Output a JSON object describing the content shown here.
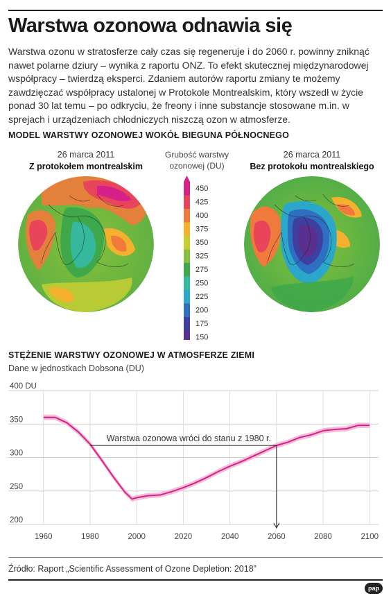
{
  "title": "Warstwa ozonowa odnawia się",
  "intro": "Warstwa ozonu w stratosferze cały czas się regeneruje i do 2060 r. powinny zniknąć nawet polarne dziury – wynika z raportu ONZ. To efekt skutecznej międzynarodowej współpracy – twierdzą eksperci. Zdaniem autorów raportu zmiany te możemy zawdzięczać współpracy ustalonej w Protokole Montrealskim, który wszedł w życie ponad 30 lat temu – po odkryciu, że freony i inne substancje stosowane m.in. w sprejach i urządzeniach chłodniczych niszczą ozon w atmosferze.",
  "maps_section": {
    "heading": "MODEL WARSTWY OZONOWEJ WOKÓŁ BIEGUNA PÓŁNOCNEGO",
    "left": {
      "date": "26 marca 2011",
      "label": "Z protokołem montrealskim"
    },
    "right": {
      "date": "26 marca 2011",
      "label": "Bez protokołu montrealskiego"
    },
    "legend": {
      "title_line1": "Grubość warstwy",
      "title_line2": "ozonowej (DU)",
      "ticks": [
        "450",
        "425",
        "400",
        "375",
        "350",
        "325",
        "275",
        "250",
        "225",
        "200",
        "175",
        "150"
      ],
      "colors": [
        "#d6218a",
        "#e8455a",
        "#f07a3c",
        "#f5b02e",
        "#c5cf32",
        "#86c03a",
        "#3fa84a",
        "#35b89b",
        "#2aa7c9",
        "#2f6fc2",
        "#3e3f9e",
        "#5b2f8e"
      ]
    }
  },
  "chart_section": {
    "heading": "STĘŻENIE WARSTWY OZONOWEJ W ATMOSFERZE ZIEMI",
    "subheading": "Dane w jednostkach Dobsona (DU)"
  },
  "chart_data": {
    "type": "line",
    "x": [
      1960,
      1965,
      1970,
      1975,
      1980,
      1985,
      1990,
      1995,
      1998,
      2000,
      2005,
      2010,
      2015,
      2020,
      2025,
      2030,
      2035,
      2040,
      2045,
      2050,
      2055,
      2060,
      2065,
      2070,
      2075,
      2080,
      2085,
      2090,
      2095,
      2100
    ],
    "series": [
      {
        "values": [
          360,
          360,
          352,
          338,
          320,
          296,
          271,
          248,
          238,
          240,
          243,
          244,
          249,
          255,
          262,
          270,
          279,
          287,
          294,
          302,
          310,
          318,
          323,
          330,
          334,
          340,
          342,
          343,
          348,
          348
        ]
      }
    ],
    "band_half_width": 4,
    "xlim": [
      1958,
      2102
    ],
    "ylim": [
      200,
      400
    ],
    "xticks": [
      "1960",
      "1980",
      "2000",
      "2020",
      "2040",
      "2060",
      "2080",
      "2100"
    ],
    "yticks": [
      "200",
      "250",
      "300",
      "350",
      "400 DU"
    ],
    "annotation": {
      "text": "Warstwa ozonowa wróci do stanu z 1980 r.",
      "from_x": 1980,
      "to_x": 2060,
      "level": 318
    },
    "line_color": "#d6218a",
    "band_color": "#f4bfd8",
    "grid": true
  },
  "source": "Źródło: Raport „Scientific Assessment of Ozone Depletion: 2018”",
  "logo": "pap"
}
